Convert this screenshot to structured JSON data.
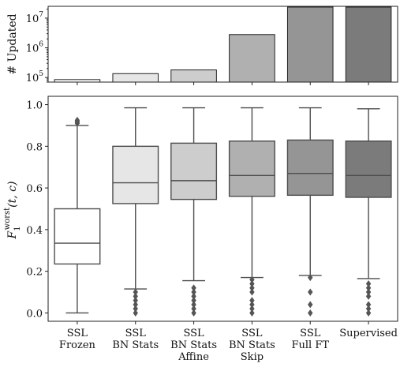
{
  "chart_data": [
    {
      "type": "bar",
      "ylabel": "# Updated",
      "yscale": "log",
      "ylim": [
        70000,
        25000000
      ],
      "yticks": [
        {
          "value": 100000,
          "base": "10",
          "exp": "5"
        },
        {
          "value": 1000000,
          "base": "10",
          "exp": "6"
        },
        {
          "value": 10000000,
          "base": "10",
          "exp": "7"
        }
      ],
      "categories": [
        "SSL Frozen",
        "SSL BN Stats",
        "SSL BN Stats Affine",
        "SSL BN Stats Skip",
        "SSL Full FT",
        "Supervised"
      ],
      "values": [
        85000,
        135000,
        180000,
        2800000,
        23500000,
        23500000
      ],
      "colors": [
        "#ffffff",
        "#e6e6e6",
        "#cdcdcd",
        "#b0b0b0",
        "#959595",
        "#7b7b7b"
      ],
      "grid": false
    },
    {
      "type": "box",
      "ylabel_main": "F",
      "ylabel_sub": "1",
      "ylabel_sup": "worst",
      "ylabel_args": "(t, c)",
      "ylim": [
        -0.04,
        1.04
      ],
      "yticks": [
        "0.0",
        "0.2",
        "0.4",
        "0.6",
        "0.8",
        "1.0"
      ],
      "ytick_values": [
        0.0,
        0.2,
        0.4,
        0.6,
        0.8,
        1.0
      ],
      "categories": [
        [
          "SSL",
          "Frozen"
        ],
        [
          "SSL",
          "BN Stats"
        ],
        [
          "SSL",
          "BN Stats",
          "Affine"
        ],
        [
          "SSL",
          "BN Stats",
          "Skip"
        ],
        [
          "SSL",
          "Full FT"
        ],
        [
          "Supervised"
        ]
      ],
      "series": [
        {
          "whisker_low": 0.0,
          "q1": 0.235,
          "median": 0.335,
          "q3": 0.5,
          "whisker_high": 0.9,
          "outliers": [
            0.91,
            0.915,
            0.92,
            0.925
          ]
        },
        {
          "whisker_low": 0.115,
          "q1": 0.525,
          "median": 0.625,
          "q3": 0.8,
          "whisker_high": 0.985,
          "outliers": [
            0.0,
            0.02,
            0.04,
            0.06,
            0.08,
            0.1
          ]
        },
        {
          "whisker_low": 0.155,
          "q1": 0.545,
          "median": 0.635,
          "q3": 0.815,
          "whisker_high": 0.985,
          "outliers": [
            0.0,
            0.02,
            0.04,
            0.06,
            0.08,
            0.1,
            0.12
          ]
        },
        {
          "whisker_low": 0.17,
          "q1": 0.56,
          "median": 0.66,
          "q3": 0.825,
          "whisker_high": 0.985,
          "outliers": [
            0.0,
            0.02,
            0.04,
            0.06,
            0.1,
            0.12,
            0.14,
            0.16
          ]
        },
        {
          "whisker_low": 0.18,
          "q1": 0.565,
          "median": 0.67,
          "q3": 0.83,
          "whisker_high": 0.985,
          "outliers": [
            0.0,
            0.04,
            0.1,
            0.17
          ]
        },
        {
          "whisker_low": 0.165,
          "q1": 0.555,
          "median": 0.66,
          "q3": 0.825,
          "whisker_high": 0.98,
          "outliers": [
            0.0,
            0.02,
            0.04,
            0.08,
            0.1,
            0.12,
            0.14
          ]
        }
      ],
      "colors": [
        "#ffffff",
        "#e6e6e6",
        "#cdcdcd",
        "#b0b0b0",
        "#959595",
        "#7b7b7b"
      ],
      "outlier_color": "#555555",
      "grid": false
    }
  ]
}
